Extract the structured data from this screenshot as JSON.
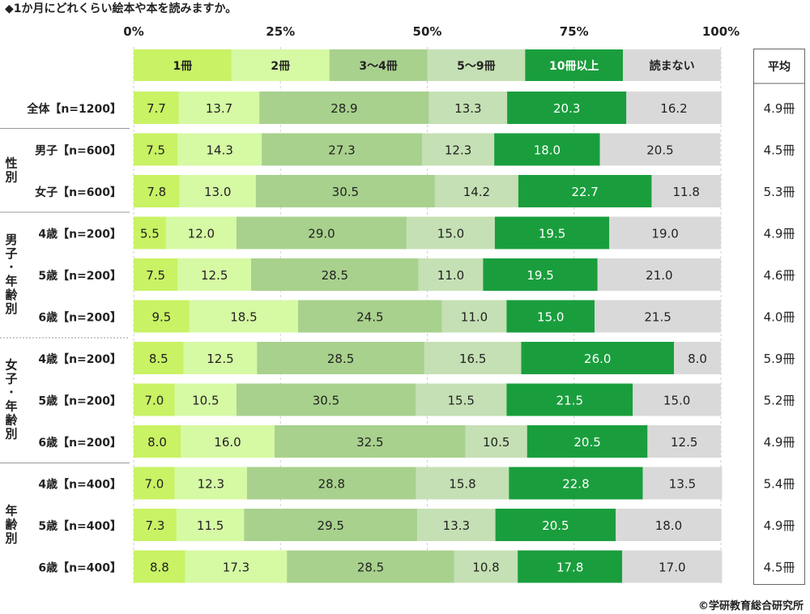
{
  "chart_data": {
    "type": "bar",
    "stacked": true,
    "orientation": "horizontal",
    "title": "◆1か月にどれくらい絵本や本を読みますか。",
    "x_ticks": [
      "0%",
      "25%",
      "50%",
      "75%",
      "100%"
    ],
    "xlim": [
      0,
      100
    ],
    "legend_position": "top",
    "avg_header": "平均",
    "series": [
      {
        "name": "1冊",
        "color": "#c9f264",
        "text_color": "#222222"
      },
      {
        "name": "2冊",
        "color": "#d6f9a4",
        "text_color": "#222222"
      },
      {
        "name": "3〜4冊",
        "color": "#a8d18d",
        "text_color": "#222222"
      },
      {
        "name": "5〜9冊",
        "color": "#c5e0b4",
        "text_color": "#222222"
      },
      {
        "name": "10冊以上",
        "color": "#1a9e3d",
        "text_color": "#ffffff"
      },
      {
        "name": "読まない",
        "color": "#d9d9d9",
        "text_color": "#222222"
      }
    ],
    "groups": [
      {
        "label": "",
        "rows": [
          0
        ]
      },
      {
        "label": "性別",
        "rows": [
          1,
          2
        ]
      },
      {
        "label": "男子･年齢別",
        "rows": [
          3,
          4,
          5
        ]
      },
      {
        "label": "女子･年齢別",
        "rows": [
          6,
          7,
          8
        ]
      },
      {
        "label": "年齢別",
        "rows": [
          9,
          10,
          11
        ]
      }
    ],
    "rows": [
      {
        "label": "全体【n=1200】",
        "values": [
          7.7,
          13.7,
          28.9,
          13.3,
          20.3,
          16.2
        ],
        "avg": "4.9冊"
      },
      {
        "label": "男子【n=600】",
        "values": [
          7.5,
          14.3,
          27.3,
          12.3,
          18.0,
          20.5
        ],
        "avg": "4.5冊"
      },
      {
        "label": "女子【n=600】",
        "values": [
          7.8,
          13.0,
          30.5,
          14.2,
          22.7,
          11.8
        ],
        "avg": "5.3冊"
      },
      {
        "label": "4歳【n=200】",
        "values": [
          5.5,
          12.0,
          29.0,
          15.0,
          19.5,
          19.0
        ],
        "avg": "4.9冊"
      },
      {
        "label": "5歳【n=200】",
        "values": [
          7.5,
          12.5,
          28.5,
          11.0,
          19.5,
          21.0
        ],
        "avg": "4.6冊"
      },
      {
        "label": "6歳【n=200】",
        "values": [
          9.5,
          18.5,
          24.5,
          11.0,
          15.0,
          21.5
        ],
        "avg": "4.0冊"
      },
      {
        "label": "4歳【n=200】",
        "values": [
          8.5,
          12.5,
          28.5,
          16.5,
          26.0,
          8.0
        ],
        "avg": "5.9冊"
      },
      {
        "label": "5歳【n=200】",
        "values": [
          7.0,
          10.5,
          30.5,
          15.5,
          21.5,
          15.0
        ],
        "avg": "5.2冊"
      },
      {
        "label": "6歳【n=200】",
        "values": [
          8.0,
          16.0,
          32.5,
          10.5,
          20.5,
          12.5
        ],
        "avg": "4.9冊"
      },
      {
        "label": "4歳【n=400】",
        "values": [
          7.0,
          12.3,
          28.8,
          15.8,
          22.8,
          13.5
        ],
        "avg": "5.4冊"
      },
      {
        "label": "5歳【n=400】",
        "values": [
          7.3,
          11.5,
          29.5,
          13.3,
          20.5,
          18.0
        ],
        "avg": "4.9冊"
      },
      {
        "label": "6歳【n=400】",
        "values": [
          8.8,
          17.3,
          28.5,
          10.8,
          17.8,
          17.0
        ],
        "avg": "4.5冊"
      }
    ],
    "copyright": "©学研教育総合研究所"
  }
}
